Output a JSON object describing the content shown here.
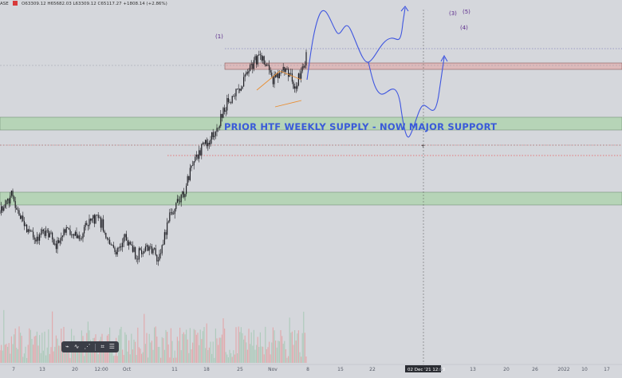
{
  "header": {
    "symbol_fragment": "ASE",
    "ohlc": "O63309.12 H65682.03 L63309.12 C65117.27 +1808.14 (+2.86%)"
  },
  "zones": {
    "major_support_label": "PRIOR HTF WEEKLY SUPPLY -  NOW MAJOR SUPPORT"
  },
  "wave_labels": [
    "(1)",
    "(3)",
    "(5)",
    "(4)"
  ],
  "cursor": {
    "date_label": "02 Dec '21   12:00"
  },
  "x_ticks": [
    "7",
    "13",
    "20",
    "12:00",
    "Oct",
    "11",
    "18",
    "25",
    "Nov",
    "8",
    "15",
    "22",
    "6",
    "13",
    "20",
    "26",
    "2022",
    "10",
    "17"
  ],
  "toolbar": {
    "icons": [
      "draw-icon",
      "path-icon",
      "node-icon",
      "crop-icon",
      "menu-icon"
    ]
  },
  "colors": {
    "background": "#d5d7dc",
    "support_zone": "#b3d4b3",
    "resistance_zone": "#dcb9ba",
    "projection": "#3f56e0",
    "candles": "#1e1e24",
    "wave_label": "#5b2b8c",
    "wedge": "#e98c2e",
    "red_dotted": "#e85a5a"
  },
  "chart_data": {
    "type": "line",
    "title": "",
    "xlabel": "",
    "ylabel": "",
    "x": [
      0,
      3,
      6,
      9,
      12,
      15,
      18,
      21,
      24,
      27,
      30,
      33,
      36,
      39,
      42,
      45,
      48,
      51,
      54,
      57,
      60,
      63,
      66,
      69,
      72,
      75,
      78,
      81
    ],
    "series": [
      {
        "values": [
          0.28,
          0.38,
          0.22,
          0.14,
          0.18,
          0.1,
          0.2,
          0.12,
          0.26,
          0.22,
          0.06,
          0.14,
          0.04,
          0.1,
          0.02,
          0.28,
          0.36,
          0.56,
          0.66,
          0.74,
          0.9,
          0.96,
          1.1,
          1.16,
          1.02,
          1.1,
          0.98,
          1.16
        ]
      }
    ]
  }
}
